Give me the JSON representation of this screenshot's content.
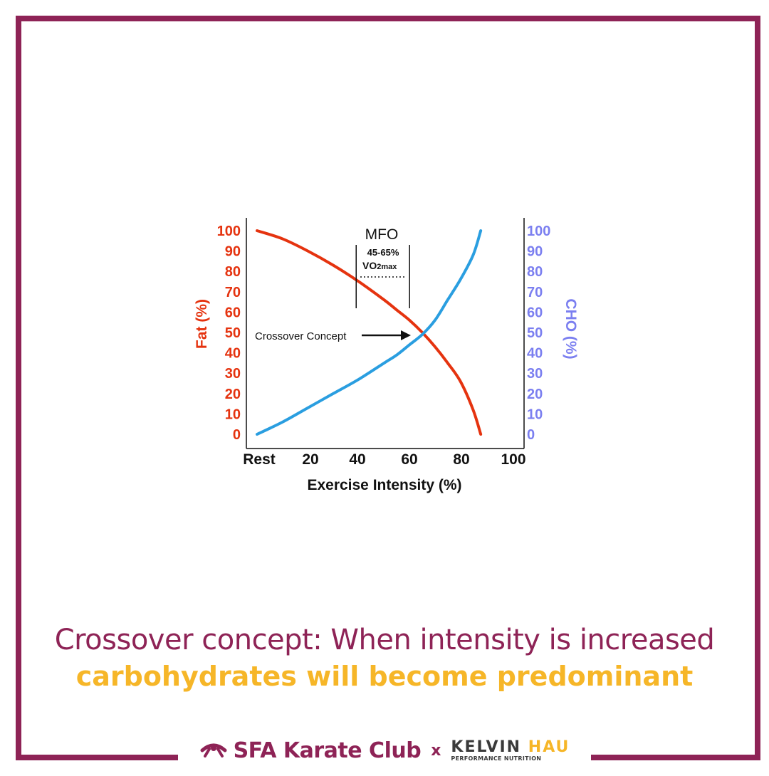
{
  "colors": {
    "frame": "#8e2356",
    "fat": "#e5330f",
    "cho": "#2a9ee0",
    "cho_axis": "#7b7ff0",
    "accent": "#f6b628",
    "ink": "#111111"
  },
  "chart_data": {
    "type": "line",
    "xlabel": "Exercise Intensity (%)",
    "ylabel_left": "Fat (%)",
    "ylabel_right": "CHO (%)",
    "x_ticks": [
      "Rest",
      "20",
      "40",
      "60",
      "80",
      "100"
    ],
    "y_ticks": [
      "0",
      "10",
      "20",
      "30",
      "40",
      "50",
      "60",
      "70",
      "80",
      "90",
      "100"
    ],
    "xlim": [
      0,
      100
    ],
    "ylim": [
      0,
      100
    ],
    "series": [
      {
        "name": "Fat (%)",
        "axis": "left",
        "color": "#e5330f",
        "x": [
          0,
          10,
          20,
          30,
          40,
          50,
          55,
          60,
          65,
          70,
          75,
          80,
          85,
          88
        ],
        "y": [
          100,
          96,
          90,
          83,
          75,
          66,
          61,
          56,
          50,
          43,
          35,
          26,
          12,
          0
        ]
      },
      {
        "name": "CHO (%)",
        "axis": "right",
        "color": "#2a9ee0",
        "x": [
          0,
          10,
          20,
          30,
          40,
          50,
          55,
          60,
          65,
          70,
          75,
          80,
          85,
          88
        ],
        "y": [
          0,
          6,
          13,
          20,
          27,
          35,
          39,
          44,
          49,
          56,
          66,
          76,
          88,
          100
        ]
      }
    ],
    "annotations": {
      "mfo_label": "MFO",
      "mfo_range": "45-65%",
      "mfo_vo2_main": "VO",
      "mfo_vo2_sub": "2max",
      "mfo_x_range": [
        39,
        60
      ],
      "crossover_label": "Crossover Concept",
      "crossover_x": 66
    }
  },
  "caption": {
    "line1": "Crossover concept: When intensity is increased",
    "line2": "carbohydrates will become predominant"
  },
  "footer": {
    "club": "SFA Karate Club",
    "separator": "x",
    "partner_part1": "KELVIN",
    "partner_part2": "HAU",
    "partner_sub": "PERFORMANCE NUTRITION"
  }
}
